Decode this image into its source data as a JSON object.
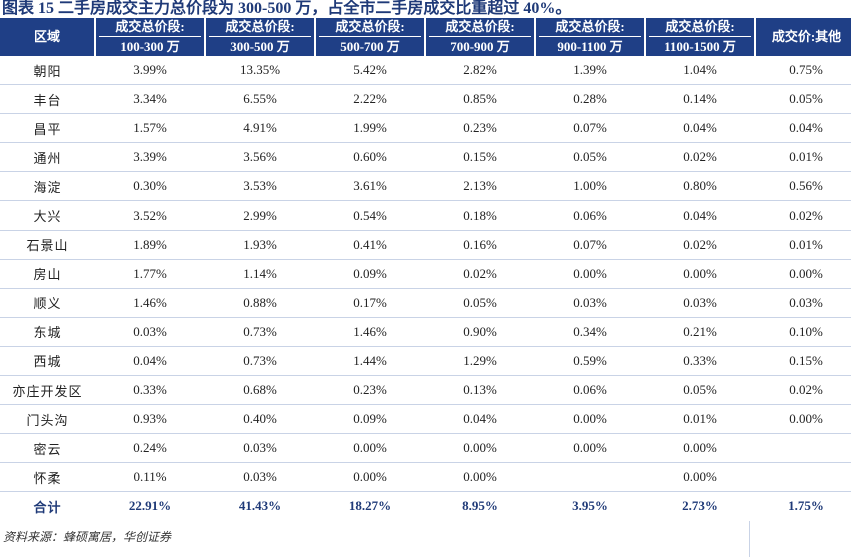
{
  "title": "图表 15  二手房成交主力总价段为 300-500 万，占全市二手房成交比重超过 40%。",
  "table": {
    "header_region": "区域",
    "columns": [
      {
        "l1": "成交总价段:",
        "l2": "100-300 万"
      },
      {
        "l1": "成交总价段:",
        "l2": "300-500 万"
      },
      {
        "l1": "成交总价段:",
        "l2": "500-700 万"
      },
      {
        "l1": "成交总价段:",
        "l2": "700-900 万"
      },
      {
        "l1": "成交总价段:",
        "l2": "900-1100 万"
      },
      {
        "l1": "成交总价段:",
        "l2": "1100-1500 万"
      }
    ],
    "header_last": "成交价:其他",
    "rows": [
      {
        "region": "朝阳",
        "v": [
          "3.99%",
          "13.35%",
          "5.42%",
          "2.82%",
          "1.39%",
          "1.04%",
          "0.75%"
        ]
      },
      {
        "region": "丰台",
        "v": [
          "3.34%",
          "6.55%",
          "2.22%",
          "0.85%",
          "0.28%",
          "0.14%",
          "0.05%"
        ]
      },
      {
        "region": "昌平",
        "v": [
          "1.57%",
          "4.91%",
          "1.99%",
          "0.23%",
          "0.07%",
          "0.04%",
          "0.04%"
        ]
      },
      {
        "region": "通州",
        "v": [
          "3.39%",
          "3.56%",
          "0.60%",
          "0.15%",
          "0.05%",
          "0.02%",
          "0.01%"
        ]
      },
      {
        "region": "海淀",
        "v": [
          "0.30%",
          "3.53%",
          "3.61%",
          "2.13%",
          "1.00%",
          "0.80%",
          "0.56%"
        ]
      },
      {
        "region": "大兴",
        "v": [
          "3.52%",
          "2.99%",
          "0.54%",
          "0.18%",
          "0.06%",
          "0.04%",
          "0.02%"
        ]
      },
      {
        "region": "石景山",
        "v": [
          "1.89%",
          "1.93%",
          "0.41%",
          "0.16%",
          "0.07%",
          "0.02%",
          "0.01%"
        ]
      },
      {
        "region": "房山",
        "v": [
          "1.77%",
          "1.14%",
          "0.09%",
          "0.02%",
          "0.00%",
          "0.00%",
          "0.00%"
        ]
      },
      {
        "region": "顺义",
        "v": [
          "1.46%",
          "0.88%",
          "0.17%",
          "0.05%",
          "0.03%",
          "0.03%",
          "0.03%"
        ]
      },
      {
        "region": "东城",
        "v": [
          "0.03%",
          "0.73%",
          "1.46%",
          "0.90%",
          "0.34%",
          "0.21%",
          "0.10%"
        ]
      },
      {
        "region": "西城",
        "v": [
          "0.04%",
          "0.73%",
          "1.44%",
          "1.29%",
          "0.59%",
          "0.33%",
          "0.15%"
        ]
      },
      {
        "region": "亦庄开发区",
        "v": [
          "0.33%",
          "0.68%",
          "0.23%",
          "0.13%",
          "0.06%",
          "0.05%",
          "0.02%"
        ]
      },
      {
        "region": "门头沟",
        "v": [
          "0.93%",
          "0.40%",
          "0.09%",
          "0.04%",
          "0.00%",
          "0.01%",
          "0.00%"
        ]
      },
      {
        "region": "密云",
        "v": [
          "0.24%",
          "0.03%",
          "0.00%",
          "0.00%",
          "0.00%",
          "0.00%",
          ""
        ]
      },
      {
        "region": "怀柔",
        "v": [
          "0.11%",
          "0.03%",
          "0.00%",
          "0.00%",
          "",
          "0.00%",
          ""
        ]
      }
    ],
    "total": {
      "region": "合计",
      "v": [
        "22.91%",
        "41.43%",
        "18.27%",
        "8.95%",
        "3.95%",
        "2.73%",
        "1.75%"
      ]
    }
  },
  "source": "资料来源：蜂硕寓居，华创证券",
  "colors": {
    "header_bg": "#1f3f86",
    "title": "#1f3a78",
    "row_rule": "#c9d3e6"
  }
}
